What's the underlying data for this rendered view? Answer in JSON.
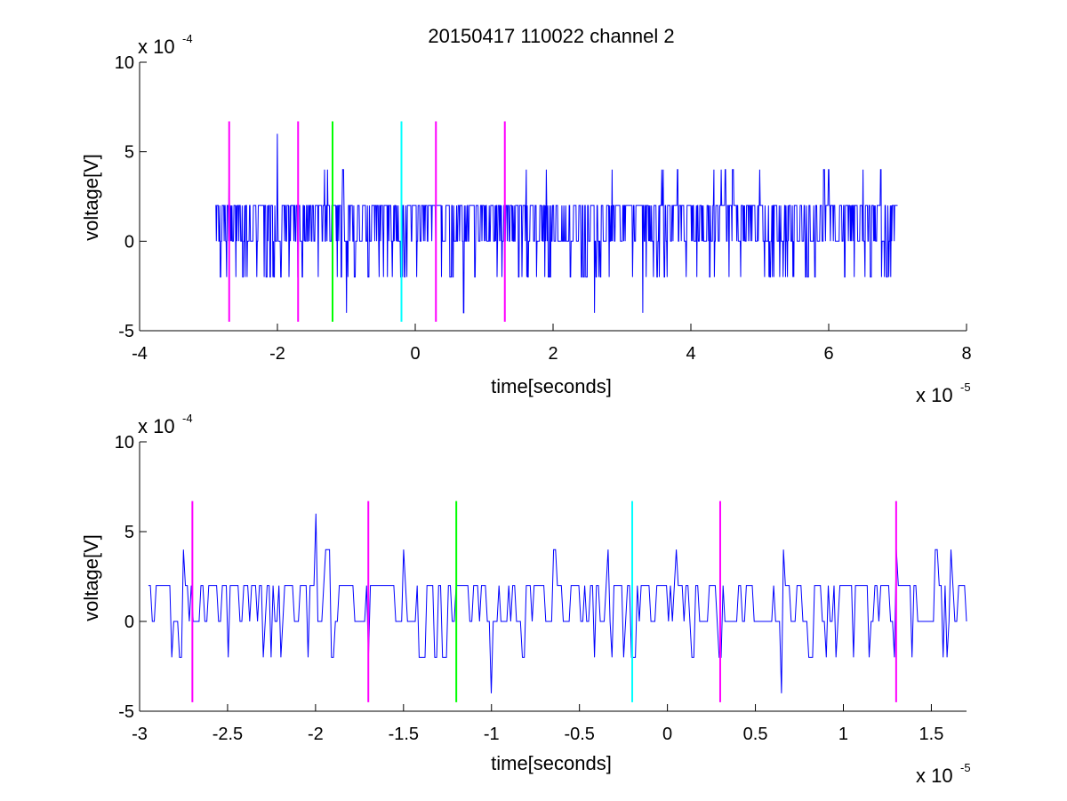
{
  "figure": {
    "title": "20150417 110022 channel 2",
    "colors": {
      "trace": "#0000ff",
      "magenta": "#ff00ff",
      "green": "#00ff00",
      "cyan": "#00ffff",
      "axes": "#000000"
    }
  },
  "chart_data": [
    {
      "type": "line",
      "title": "20150417 110022 channel 2",
      "xlabel": "time[seconds]",
      "ylabel": "voltage[V]",
      "x_exponent_label": "x 10",
      "x_exponent": "-5",
      "y_exponent_label": "x 10",
      "y_exponent": "-4",
      "xlim": [
        -4,
        8
      ],
      "ylim": [
        -5,
        10
      ],
      "xticks": [
        "-4",
        "-2",
        "0",
        "2",
        "4",
        "6",
        "8"
      ],
      "yticks": [
        "-5",
        "0",
        "5",
        "10"
      ],
      "grid": false,
      "series": [
        {
          "values_summary": "quantized noisy voltage trace, levels -4..6 (x1e-4 V), x from -2.9 to 7.0 (x1e-5 s)",
          "x_range": [
            -2.9,
            7.0
          ],
          "levels": [
            -4,
            -2,
            0,
            2,
            4,
            6
          ],
          "anchor_points": [
            [
              -2.9,
              2
            ],
            [
              -2.7,
              4
            ],
            [
              -2.3,
              -2
            ],
            [
              -2.0,
              6
            ],
            [
              -1.0,
              -4
            ],
            [
              0.7,
              -4
            ],
            [
              1.9,
              4
            ],
            [
              2.6,
              -4
            ],
            [
              3.3,
              -4
            ],
            [
              3.6,
              4
            ],
            [
              4.5,
              4
            ],
            [
              5.0,
              4
            ],
            [
              5.4,
              -2
            ],
            [
              6.0,
              4
            ],
            [
              6.5,
              4
            ],
            [
              6.9,
              -2
            ],
            [
              7.0,
              2
            ]
          ]
        }
      ],
      "markers": [
        {
          "x": -2.7,
          "color": "magenta",
          "ymin": -4.5,
          "ymax": 6.7
        },
        {
          "x": -1.7,
          "color": "magenta",
          "ymin": -4.5,
          "ymax": 6.7
        },
        {
          "x": -1.2,
          "color": "green",
          "ymin": -4.5,
          "ymax": 6.7
        },
        {
          "x": -0.2,
          "color": "cyan",
          "ymin": -4.5,
          "ymax": 6.7
        },
        {
          "x": 0.3,
          "color": "magenta",
          "ymin": -4.5,
          "ymax": 6.7
        },
        {
          "x": 1.3,
          "color": "magenta",
          "ymin": -4.5,
          "ymax": 6.7
        }
      ]
    },
    {
      "type": "line",
      "title": "",
      "xlabel": "time[seconds]",
      "ylabel": "voltage[V]",
      "x_exponent_label": "x 10",
      "x_exponent": "-5",
      "y_exponent_label": "x 10",
      "y_exponent": "-4",
      "xlim": [
        -3.0,
        1.7
      ],
      "ylim": [
        -5,
        10
      ],
      "xticks": [
        "-3",
        "-2.5",
        "-2",
        "-1.5",
        "-1",
        "-0.5",
        "0",
        "0.5",
        "1",
        "1.5"
      ],
      "yticks": [
        "-5",
        "0",
        "5",
        "10"
      ],
      "grid": false,
      "series": [
        {
          "values_summary": "zoomed quantized voltage trace, levels -4..6 (x1e-4 V), x from -2.95 to 1.7 (x1e-5 s)",
          "x_range": [
            -2.95,
            1.7
          ],
          "levels": [
            -4,
            -2,
            0,
            2,
            4,
            6
          ],
          "anchor_points": [
            [
              -2.95,
              2
            ],
            [
              -2.75,
              4
            ],
            [
              -2.5,
              -2
            ],
            [
              -2.0,
              6
            ],
            [
              -1.7,
              -2
            ],
            [
              -1.5,
              4
            ],
            [
              -1.0,
              -4
            ],
            [
              -0.65,
              4
            ],
            [
              -0.2,
              -2
            ],
            [
              0.05,
              4
            ],
            [
              0.3,
              -2
            ],
            [
              0.65,
              -4
            ],
            [
              1.3,
              4
            ],
            [
              1.7,
              0
            ]
          ]
        }
      ],
      "markers": [
        {
          "x": -2.7,
          "color": "magenta",
          "ymin": -4.5,
          "ymax": 6.7
        },
        {
          "x": -1.7,
          "color": "magenta",
          "ymin": -4.5,
          "ymax": 6.7
        },
        {
          "x": -1.2,
          "color": "green",
          "ymin": -4.5,
          "ymax": 6.7
        },
        {
          "x": -0.2,
          "color": "cyan",
          "ymin": -4.5,
          "ymax": 6.7
        },
        {
          "x": 0.3,
          "color": "magenta",
          "ymin": -4.5,
          "ymax": 6.7
        },
        {
          "x": 1.3,
          "color": "magenta",
          "ymin": -4.5,
          "ymax": 6.7
        }
      ]
    }
  ]
}
